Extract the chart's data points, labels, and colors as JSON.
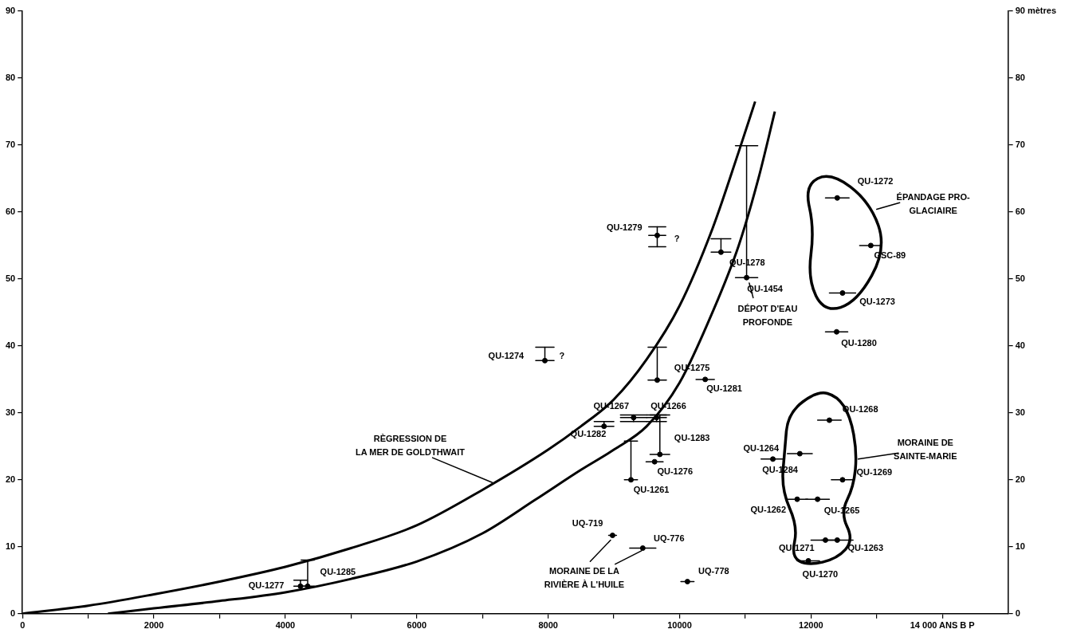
{
  "chart_data": {
    "type": "scatter",
    "xlim": [
      0,
      15000
    ],
    "ylim": [
      0,
      90
    ],
    "y2lim": [
      0,
      90
    ],
    "xticks": [
      0,
      {
        "value": 1000,
        "label": null
      },
      2000,
      {
        "value": 3000,
        "label": null
      },
      4000,
      {
        "value": 5000,
        "label": null
      },
      6000,
      {
        "value": 7000,
        "label": null
      },
      8000,
      {
        "value": 9000,
        "label": null
      },
      10000,
      {
        "value": 11000,
        "label": null
      },
      12000,
      {
        "value": 13000,
        "label": null
      },
      {
        "value": 14000,
        "label": "14 000 ANS B P"
      }
    ],
    "yticks": [
      0,
      10,
      20,
      30,
      40,
      50,
      60,
      70,
      80,
      90
    ],
    "y2ticks": [
      0,
      10,
      20,
      30,
      40,
      50,
      60,
      70,
      80,
      {
        "value": 90,
        "label": "90 mètres"
      }
    ],
    "grid": false,
    "legend": false,
    "series": [
      {
        "marker": "circle",
        "color": "#000000",
        "x": [
          4230,
          4340,
          7950,
          9660,
          10630,
          9660,
          8850,
          9300,
          9650,
          9700,
          9260
        ],
        "values": [
          4.1,
          4.1,
          37.8,
          56.5,
          54.0,
          34.9,
          28.0,
          29.3,
          29.3,
          23.8,
          20.0
        ],
        "xerrors": [
          100,
          100,
          140,
          130,
          150,
          140,
          150,
          200,
          150,
          150,
          100
        ],
        "errors": [
          [
            4.1,
            5.0
          ],
          [
            4.1,
            8.0
          ],
          [
            37.8,
            39.8
          ],
          [
            54.8,
            57.8
          ],
          [
            54.0,
            56.0
          ],
          [
            34.9,
            39.8
          ],
          [
            28.0,
            28.7
          ],
          [
            28.7,
            29.7
          ],
          [
            28.7,
            29.7
          ],
          [
            23.8,
            29.7
          ],
          [
            20.0,
            25.8
          ]
        ]
      },
      {
        "marker": "circle",
        "color": "#000000",
        "x": [
          11020,
          10390,
          9620,
          8980,
          9440,
          10120,
          12400,
          12910,
          12480,
          12390,
          12280,
          11830,
          11420,
          12480,
          11790,
          12100,
          12220,
          12400,
          11960
        ],
        "values": [
          50.2,
          35.0,
          22.7,
          11.7,
          9.8,
          4.8,
          62.1,
          55.0,
          47.9,
          42.1,
          28.9,
          23.9,
          23.1,
          20.0,
          17.1,
          17.1,
          11.0,
          11.0,
          7.9
        ],
        "xerrors": [
          170,
          140,
          130,
          60,
          200,
          100,
          180,
          170,
          200,
          170,
          180,
          190,
          180,
          170,
          160,
          180,
          220,
          240,
          170
        ],
        "errors": [
          [
            50.2,
            69.9
          ],
          null,
          null,
          null,
          null,
          null,
          null,
          null,
          null,
          null,
          null,
          null,
          null,
          null,
          null,
          null,
          null,
          null,
          null
        ]
      },
      {
        "type": "line",
        "marker": "none",
        "color": "#000000",
        "x": [
          0,
          1000,
          2000,
          3000,
          4000,
          5000,
          6000,
          7000,
          8000,
          8500,
          9000,
          9500,
          10000,
          10500,
          10900,
          11150
        ],
        "values": [
          0,
          1.2,
          2.9,
          4.8,
          7.0,
          9.8,
          13.2,
          18.5,
          24.5,
          28,
          32,
          38,
          46,
          57.5,
          69,
          76.5
        ]
      },
      {
        "type": "line",
        "marker": "none",
        "color": "#000000",
        "x": [
          1300,
          2000,
          3000,
          4000,
          5000,
          6000,
          7000,
          7800,
          8500,
          9000,
          9500,
          10000,
          10500,
          10900,
          11200,
          11450
        ],
        "values": [
          0,
          0.8,
          1.9,
          3.2,
          5.2,
          7.8,
          12,
          17,
          21.5,
          24.5,
          28,
          34.5,
          45,
          55,
          65,
          75
        ]
      }
    ],
    "annotations": [
      {
        "text": "QU-1277",
        "x": 4230,
        "y": 4.1
      },
      {
        "text": "QU-1285",
        "x": 4340,
        "y": 4.1
      },
      {
        "text": "QU-1274",
        "x": 7950,
        "y": 37.8
      },
      {
        "text": "?",
        "x": 7950,
        "y": 37.8
      },
      {
        "text": "QU-1279",
        "x": 9660,
        "y": 56.5
      },
      {
        "text": "?",
        "x": 9660,
        "y": 56.5
      },
      {
        "text": "QU-1278",
        "x": 10630,
        "y": 54.0
      },
      {
        "text": "QU-1454",
        "x": 11020,
        "y": 50.2
      },
      "DÉPOT D'EAU\nPROFONDE",
      {
        "text": "QU-1275",
        "x": 9660,
        "y": 34.9
      },
      {
        "text": "QU-1281",
        "x": 10390,
        "y": 35.0
      },
      {
        "text": "QU-1267",
        "x": 9300,
        "y": 29.3
      },
      {
        "text": "QU-1266",
        "x": 9650,
        "y": 29.3
      },
      {
        "text": "QU-1282",
        "x": 8850,
        "y": 28.0
      },
      {
        "text": "QU-1283",
        "x": 9700,
        "y": 23.8
      },
      {
        "text": "QU-1276",
        "x": 9620,
        "y": 22.7
      },
      {
        "text": "QU-1261",
        "x": 9260,
        "y": 20.0
      },
      {
        "text": "UQ-719",
        "x": 8980,
        "y": 11.7
      },
      {
        "text": "UQ-776",
        "x": 9440,
        "y": 9.8
      },
      {
        "text": "UQ-778",
        "x": 10120,
        "y": 4.8
      },
      "MORAINE DE LA\nRIVIÈRE À L'HUILE",
      {
        "text": "RÈGRESSION DE\nLA MER DE GOLDTHWAIT",
        "x": 7150,
        "y": 19.6
      },
      {
        "text": "QU-1272",
        "x": 12400,
        "y": 62.1
      },
      "ÉPANDAGE PRO-\nGLACIAIRE",
      {
        "text": "GSC-89",
        "x": 12910,
        "y": 55.0
      },
      {
        "text": "QU-1273",
        "x": 12480,
        "y": 47.9
      },
      {
        "text": "QU-1280",
        "x": 12390,
        "y": 42.1
      },
      {
        "text": "QU-1268",
        "x": 12280,
        "y": 28.9
      },
      {
        "text": "QU-1264",
        "x": 11830,
        "y": 23.9
      },
      {
        "text": "QU-1284",
        "x": 11420,
        "y": 23.1
      },
      "MORAINE DE\nSAINTE-MARIE",
      {
        "text": "QU-1269",
        "x": 12480,
        "y": 20.0
      },
      {
        "text": "QU-1262",
        "x": 11790,
        "y": 17.1
      },
      {
        "text": "QU-1265",
        "x": 12100,
        "y": 17.1
      },
      {
        "text": "QU-1271",
        "x": 12220,
        "y": 11.0
      },
      {
        "text": "QU-1263",
        "x": 12400,
        "y": 11.0
      },
      {
        "text": "QU-1270",
        "x": 11960,
        "y": 7.9
      }
    ]
  }
}
